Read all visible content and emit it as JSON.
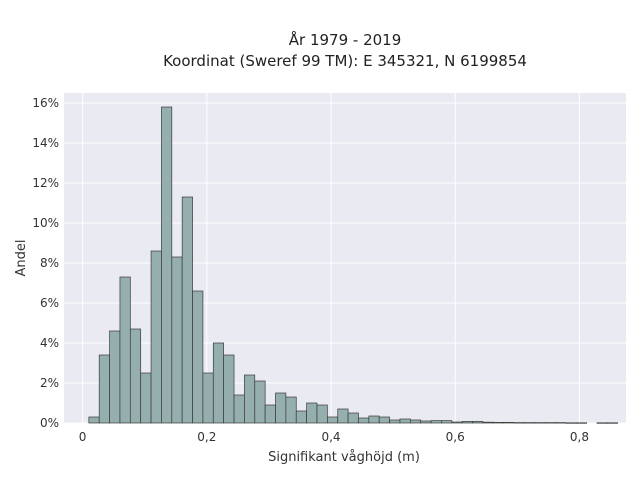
{
  "chart_data": {
    "type": "bar",
    "title_line1": "År 1979 - 2019",
    "title_line2": "Koordinat (Sweref 99 TM): E 345321, N 6199854",
    "xlabel": "Signifikant våghöjd (m)",
    "ylabel": "Andel",
    "xlim": [
      -0.03,
      0.875
    ],
    "ylim": [
      0,
      16.5
    ],
    "grid": true,
    "colors": {
      "bar_fill": "#95aeae",
      "bar_edge": "#3a3a3a",
      "plot_bg": "#eaeaf2",
      "grid": "#ffffff"
    },
    "x_ticks": [
      {
        "value": 0,
        "label": "0"
      },
      {
        "value": 0.2,
        "label": "0,2"
      },
      {
        "value": 0.4,
        "label": "0,4"
      },
      {
        "value": 0.6,
        "label": "0,6"
      },
      {
        "value": 0.8,
        "label": "0,8"
      }
    ],
    "y_ticks": [
      {
        "value": 0,
        "label": "0%"
      },
      {
        "value": 2,
        "label": "2%"
      },
      {
        "value": 4,
        "label": "4%"
      },
      {
        "value": 6,
        "label": "6%"
      },
      {
        "value": 8,
        "label": "8%"
      },
      {
        "value": 10,
        "label": "10%"
      },
      {
        "value": 12,
        "label": "12%"
      },
      {
        "value": 14,
        "label": "14%"
      },
      {
        "value": 16,
        "label": "16%"
      }
    ],
    "bin_width": 0.0167,
    "bin_start": 0.01,
    "values": [
      0.3,
      3.4,
      4.6,
      7.3,
      4.7,
      2.5,
      8.6,
      15.8,
      8.3,
      11.3,
      6.6,
      2.5,
      4.0,
      3.4,
      1.4,
      2.4,
      2.1,
      0.9,
      1.5,
      1.3,
      0.6,
      1.0,
      0.9,
      0.3,
      0.7,
      0.5,
      0.25,
      0.35,
      0.3,
      0.15,
      0.2,
      0.15,
      0.1,
      0.12,
      0.12,
      0.05,
      0.08,
      0.08,
      0.04,
      0.03,
      0.03,
      0.02,
      0.02,
      0.02,
      0.02,
      0.02,
      0.01,
      0.01,
      0.0,
      0.01,
      0.01
    ]
  }
}
